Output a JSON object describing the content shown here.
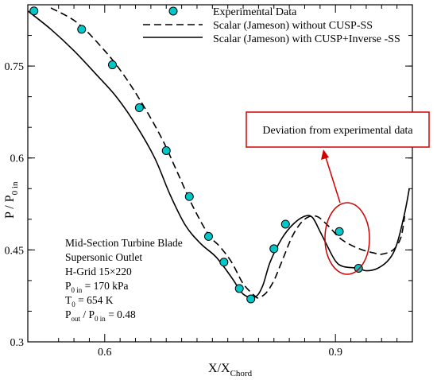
{
  "chart_data": {
    "type": "line",
    "xlabel": "X/X",
    "xlabel_sub": "Chord",
    "ylabel": "P / P",
    "ylabel_sub": "0 in",
    "xlim": [
      0.5,
      1.0
    ],
    "ylim": [
      0.3,
      0.85
    ],
    "x_major_ticks": [
      0.6,
      0.9
    ],
    "x_minor_ticks": [
      0.5,
      0.54,
      0.56,
      0.58,
      0.62,
      0.64,
      0.66,
      0.68,
      0.7,
      0.72,
      0.74,
      0.76,
      0.78,
      0.8,
      0.82,
      0.84,
      0.86,
      0.88,
      0.92,
      0.94,
      0.96,
      0.98
    ],
    "x_tick_labels": [
      "0.6",
      "0.9"
    ],
    "y_ticks": [
      0.3,
      0.45,
      0.6,
      0.75
    ],
    "y_tick_labels": [
      "0.3",
      "0.45",
      "0.6",
      "0.75"
    ],
    "grid": false,
    "legend_position": "top-right",
    "series": [
      {
        "name": "Experimental Data",
        "style": "marker",
        "color": "#00c8c8",
        "x": [
          0.508,
          0.57,
          0.61,
          0.645,
          0.68,
          0.71,
          0.735,
          0.755,
          0.775,
          0.79,
          0.82,
          0.835,
          0.905,
          0.93
        ],
        "y": [
          0.84,
          0.81,
          0.752,
          0.682,
          0.612,
          0.537,
          0.472,
          0.43,
          0.387,
          0.37,
          0.452,
          0.492,
          0.48,
          0.42
        ]
      },
      {
        "name": "Scalar (Jameson) without CUSP-SS",
        "style": "dashed",
        "color": "#000000",
        "x": [
          0.53,
          0.565,
          0.6,
          0.625,
          0.65,
          0.675,
          0.695,
          0.715,
          0.735,
          0.75,
          0.765,
          0.78,
          0.795,
          0.8,
          0.81,
          0.82,
          0.83,
          0.845,
          0.86,
          0.875,
          0.89,
          0.905,
          0.92,
          0.935,
          0.95,
          0.96,
          0.975,
          0.985,
          0.99
        ],
        "y": [
          0.845,
          0.82,
          0.775,
          0.735,
          0.686,
          0.63,
          0.575,
          0.52,
          0.475,
          0.455,
          0.43,
          0.395,
          0.375,
          0.372,
          0.38,
          0.4,
          0.43,
          0.475,
          0.5,
          0.505,
          0.49,
          0.47,
          0.458,
          0.45,
          0.445,
          0.443,
          0.45,
          0.47,
          0.505
        ]
      },
      {
        "name": "Scalar (Jameson) with CUSP+Inverse -SS",
        "style": "solid",
        "color": "#000000",
        "x": [
          0.5,
          0.53,
          0.56,
          0.59,
          0.615,
          0.64,
          0.665,
          0.685,
          0.705,
          0.725,
          0.745,
          0.765,
          0.78,
          0.795,
          0.805,
          0.815,
          0.83,
          0.845,
          0.86,
          0.87,
          0.88,
          0.89,
          0.9,
          0.91,
          0.93,
          0.94,
          0.955,
          0.97,
          0.98,
          0.99,
          0.996
        ],
        "y": [
          0.84,
          0.81,
          0.775,
          0.735,
          0.7,
          0.655,
          0.6,
          0.54,
          0.49,
          0.46,
          0.438,
          0.405,
          0.378,
          0.373,
          0.39,
          0.43,
          0.468,
          0.492,
          0.505,
          0.503,
          0.48,
          0.455,
          0.432,
          0.423,
          0.42,
          0.416,
          0.42,
          0.435,
          0.46,
          0.51,
          0.55
        ]
      }
    ],
    "legend": [
      "Experimental Data",
      "Scalar (Jameson) without CUSP-SS",
      "Scalar (Jameson) with CUSP+Inverse -SS"
    ],
    "annotations": {
      "callout": "Deviation from experimental data",
      "callout_color": "#d00000",
      "highlight_ellipse_center": [
        0.885,
        0.466
      ],
      "arrow_from": [
        0.9,
        0.5
      ],
      "arrow_to": [
        0.88,
        0.62
      ]
    },
    "info_box": {
      "line1": "Mid-Section Turbine Blade",
      "line2": "Supersonic Outlet",
      "line3": "H-Grid 15×220",
      "line4_main": "P",
      "line4_sub": "0 in",
      "line4_rest": " = 170 kPa",
      "line5_main": "T",
      "line5_sub": "0",
      "line5_rest": " = 654 K",
      "line6_a": "P",
      "line6_a_sub": "out",
      "line6_mid": " / P",
      "line6_b_sub": "0 in",
      "line6_rest": " = 0.48"
    }
  }
}
